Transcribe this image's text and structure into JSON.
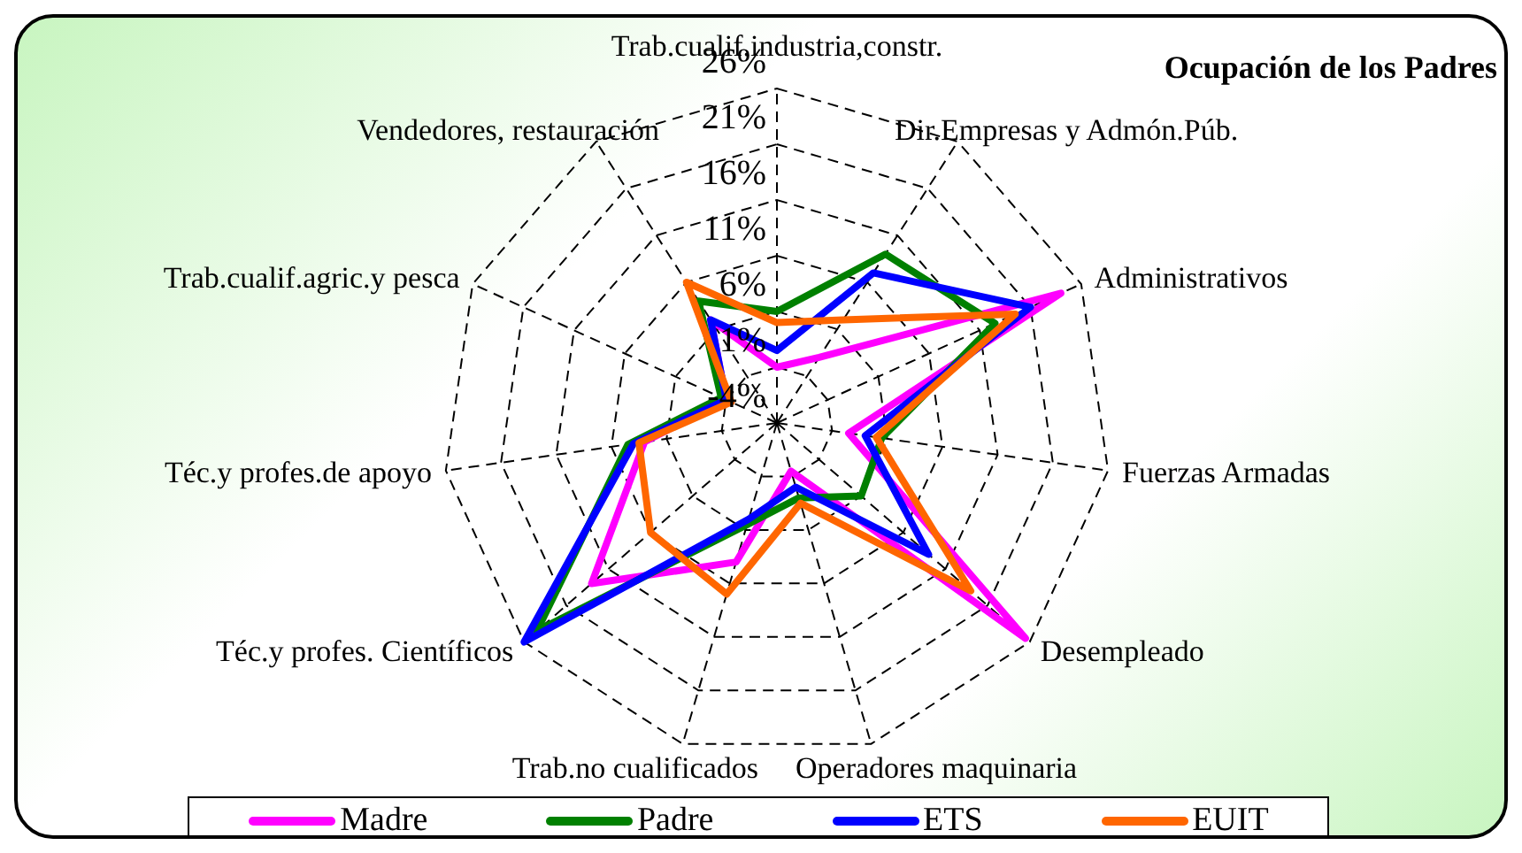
{
  "chart_data": {
    "type": "radar",
    "title": "Ocupación de los Padres",
    "categories": [
      "Trab.cualif.industria,constr.",
      "Dir.Empresas y Admón.Púb.",
      "Administrativos",
      "Fuerzas Armadas",
      "Desempleado",
      "Operadores maquinaria",
      "Trab.no cualificados",
      "Téc.y profes. Científicos",
      "Téc.y profes.de apoyo",
      "Trab.cualif.agric.y pesca",
      "Vendedores, restauración"
    ],
    "series": [
      {
        "name": "Madre",
        "color": "#ff00ff",
        "values": [
          1,
          3,
          24,
          2.5,
          25.5,
          0.5,
          9,
          18,
          8,
          1,
          7
        ]
      },
      {
        "name": "Padre",
        "color": "#008000",
        "values": [
          6,
          14,
          17.5,
          5.5,
          6,
          3,
          5.5,
          24.5,
          9.5,
          1.5,
          9
        ]
      },
      {
        "name": "ETS",
        "color": "#0000ff",
        "values": [
          2.5,
          12,
          21,
          4,
          14,
          2,
          5,
          26,
          9,
          1,
          7
        ]
      },
      {
        "name": "EUIT",
        "color": "#ff6600",
        "values": [
          5,
          7,
          19.5,
          5,
          19,
          3.5,
          12,
          11,
          8.5,
          0.5,
          11
        ]
      }
    ],
    "ylim": [
      -4,
      26
    ],
    "yticks": [
      {
        "value": -4,
        "label": "-4%"
      },
      {
        "value": 1,
        "label": "1%"
      },
      {
        "value": 6,
        "label": "6%"
      },
      {
        "value": 11,
        "label": "11%"
      },
      {
        "value": 16,
        "label": "16%"
      },
      {
        "value": 21,
        "label": "21%"
      },
      {
        "value": 26,
        "label": "26%"
      }
    ],
    "grid": true,
    "legend": "bottom",
    "line_style": "solid"
  }
}
